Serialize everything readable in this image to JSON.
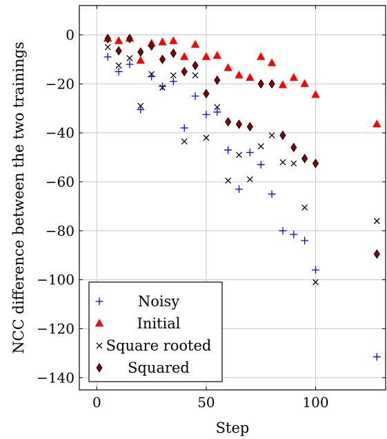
{
  "chart_data": {
    "type": "scatter",
    "title": "",
    "xlabel": "Step",
    "ylabel": "NCC difference between the two trainings",
    "xlim": [
      -8,
      132
    ],
    "ylim": [
      -145,
      12
    ],
    "xticks": [
      0,
      50,
      100
    ],
    "yticks": [
      0,
      -20,
      -40,
      -60,
      -80,
      -100,
      -120,
      -140
    ],
    "xtick_labels": [
      "0",
      "50",
      "100"
    ],
    "ytick_labels": [
      "0",
      "−20",
      "−40",
      "−60",
      "−80",
      "−100",
      "−120",
      "−140"
    ],
    "grid": true,
    "legend_position": "bottom-left",
    "series": [
      {
        "name": "Noisy",
        "marker": "plus",
        "color": "#0000ff",
        "x": [
          5,
          10,
          15,
          20,
          25,
          30,
          35,
          40,
          45,
          50,
          55,
          60,
          65,
          70,
          75,
          80,
          85,
          90,
          95,
          100,
          128
        ],
        "y": [
          -9,
          -15,
          -12,
          -30.5,
          -17,
          -21,
          -19,
          -38,
          -25,
          -32.5,
          -31.5,
          -47,
          -63,
          -48,
          -53,
          -65,
          -80,
          -81.5,
          -84,
          -96,
          -131.5
        ]
      },
      {
        "name": "Initial",
        "marker": "triangle",
        "color": "#ff0000",
        "x": [
          5,
          10,
          15,
          20,
          25,
          30,
          35,
          40,
          45,
          50,
          55,
          60,
          65,
          70,
          75,
          80,
          85,
          90,
          95,
          100,
          128
        ],
        "y": [
          -1.5,
          -2.5,
          -1.5,
          -10.5,
          -3.5,
          -3,
          -2.5,
          -9,
          -4,
          -9,
          -8.5,
          -13.5,
          -16.5,
          -17.5,
          -9,
          -11.5,
          -20.5,
          -17.5,
          -20,
          -24.5,
          -36.5
        ]
      },
      {
        "name": "Square rooted",
        "marker": "cross",
        "color": "#000000",
        "x": [
          5,
          10,
          15,
          20,
          25,
          30,
          35,
          40,
          45,
          50,
          55,
          60,
          65,
          70,
          75,
          80,
          85,
          90,
          95,
          100,
          128
        ],
        "y": [
          -5,
          -12.5,
          -9.5,
          -29,
          -16,
          -21.5,
          -16.5,
          -43.5,
          -16.5,
          -42,
          -29.5,
          -59.5,
          -49,
          -59,
          -45.5,
          -41,
          -52,
          -52.5,
          -70.5,
          -101,
          -76
        ]
      },
      {
        "name": "Squared",
        "marker": "diamond",
        "color": "#8b0000",
        "edge": "#000000",
        "x": [
          5,
          10,
          15,
          20,
          25,
          30,
          35,
          40,
          45,
          50,
          55,
          60,
          65,
          70,
          75,
          80,
          85,
          90,
          95,
          100,
          128
        ],
        "y": [
          -1.5,
          -6.5,
          -1.5,
          -7,
          -4.5,
          -10,
          -7.5,
          -15,
          -12.5,
          -24,
          -18.5,
          -35.5,
          -36.5,
          -37.5,
          -20,
          -20,
          -41,
          -46,
          -50.5,
          -52.5,
          -89.5
        ]
      }
    ]
  }
}
